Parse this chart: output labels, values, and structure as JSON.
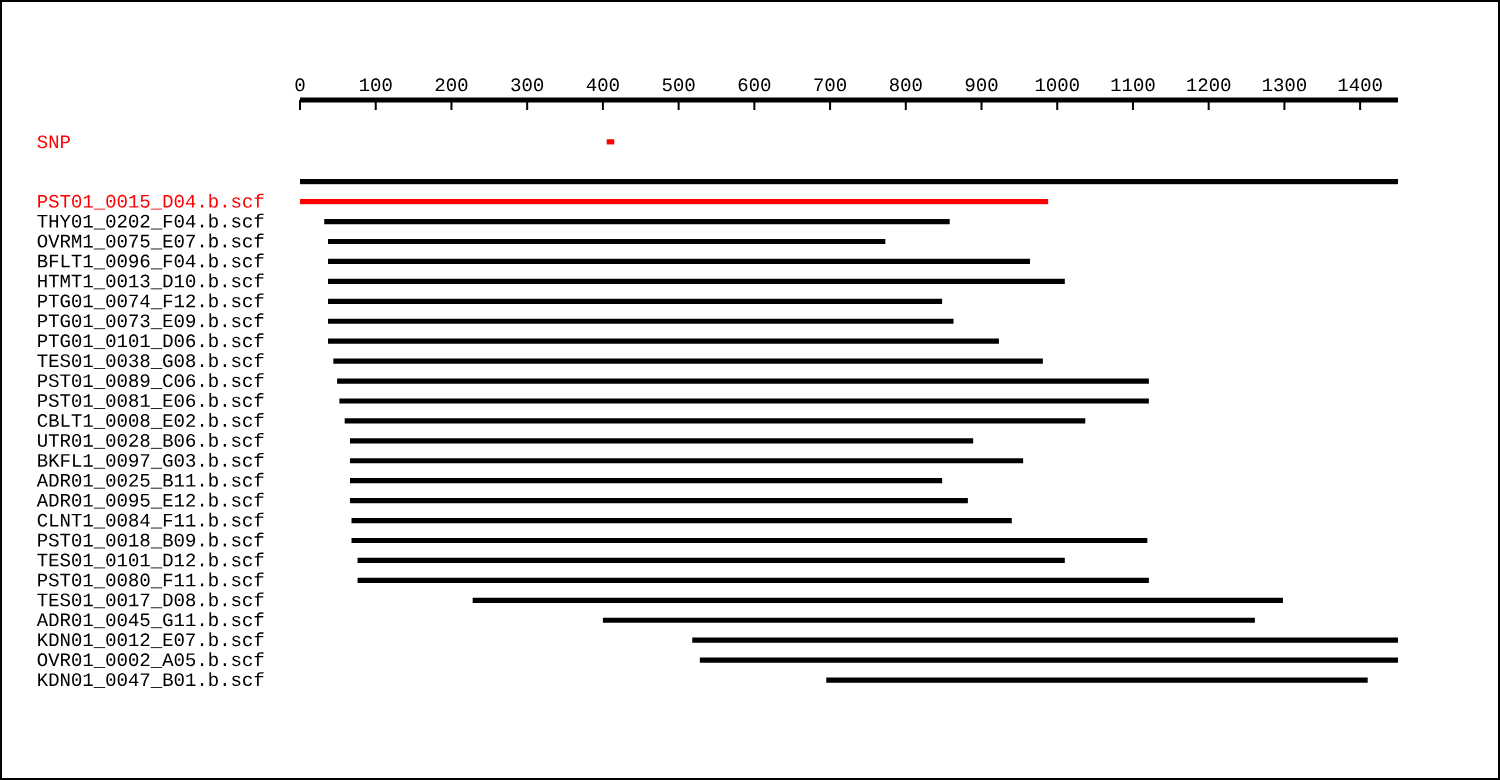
{
  "chart_data": {
    "type": "bar",
    "orientation": "horizontal",
    "categories": [
      "SNP",
      null,
      null,
      "PST01_0015_D04.b.scf",
      "THY01_0202_F04.b.scf",
      "OVRM1_0075_E07.b.scf",
      "BFLT1_0096_F04.b.scf",
      "HTMT1_0013_D10.b.scf",
      "PTG01_0074_F12.b.scf",
      "PTG01_0073_E09.b.scf",
      "PTG01_0101_D06.b.scf",
      "TES01_0038_G08.b.scf",
      "PST01_0089_C06.b.scf",
      "PST01_0081_E06.b.scf",
      "CBLT1_0008_E02.b.scf",
      "UTR01_0028_B06.b.scf",
      "BKFL1_0097_G03.b.scf",
      "ADR01_0025_B11.b.scf",
      "ADR01_0095_E12.b.scf",
      "CLNT1_0084_F11.b.scf",
      "PST01_0018_B09.b.scf",
      "TES01_0101_D12.b.scf",
      "PST01_0080_F11.b.scf",
      "TES01_0017_D08.b.scf",
      "ADR01_0045_G11.b.scf",
      "KDN01_0012_E07.b.scf",
      "OVR01_0002_A05.b.scf",
      "KDN01_0047_B01.b.scf"
    ],
    "base": [
      405,
      null,
      0,
      0,
      32,
      37,
      37,
      37,
      37,
      37,
      37,
      44,
      49,
      52,
      59,
      66,
      66,
      66,
      66,
      68,
      68,
      76,
      76,
      228,
      400,
      518,
      528,
      695
    ],
    "values": [
      10,
      null,
      1450,
      988,
      826,
      736,
      927,
      973,
      811,
      826,
      886,
      937,
      1072,
      1069,
      978,
      823,
      889,
      782,
      816,
      872,
      1051,
      934,
      1045,
      1070,
      861,
      932,
      922,
      715
    ],
    "colors": [
      "#ff0000",
      null,
      "#000000",
      "#ff0000",
      "#000000",
      "#000000",
      "#000000",
      "#000000",
      "#000000",
      "#000000",
      "#000000",
      "#000000",
      "#000000",
      "#000000",
      "#000000",
      "#000000",
      "#000000",
      "#000000",
      "#000000",
      "#000000",
      "#000000",
      "#000000",
      "#000000",
      "#000000",
      "#000000",
      "#000000",
      "#000000",
      "#000000"
    ],
    "xlim": [
      0,
      1450
    ],
    "xticks": [
      0,
      100,
      200,
      300,
      400,
      500,
      600,
      700,
      800,
      900,
      1000,
      1100,
      1200,
      1300,
      1400
    ],
    "grid": false
  }
}
